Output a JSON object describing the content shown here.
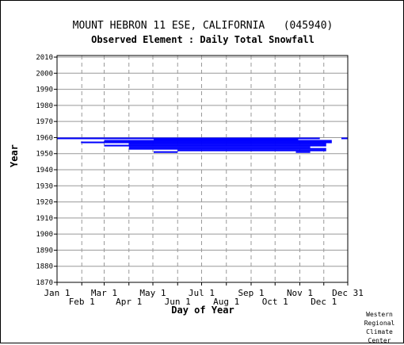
{
  "chart_data": {
    "type": "bar",
    "title": "MOUNT HEBRON 11 ESE, CALIFORNIA   (045940)",
    "subtitle": "Observed Element : Daily Total Snowfall",
    "xlabel": "Day of Year",
    "ylabel": "Year",
    "ylim": [
      1870,
      2011
    ],
    "y_ticks": [
      2010,
      2000,
      1990,
      1980,
      1970,
      1960,
      1950,
      1940,
      1930,
      1920,
      1910,
      1900,
      1890,
      1880,
      1870
    ],
    "x_ticks_top_row": [
      {
        "label": "Jan 1",
        "day": 1
      },
      {
        "label": "Mar 1",
        "day": 60
      },
      {
        "label": "May 1",
        "day": 121
      },
      {
        "label": "Jul 1",
        "day": 182
      },
      {
        "label": "Sep 1",
        "day": 244
      },
      {
        "label": "Nov 1",
        "day": 305
      },
      {
        "label": "Dec 31",
        "day": 365
      }
    ],
    "x_ticks_bottom_row": [
      {
        "label": "Feb 1",
        "day": 32
      },
      {
        "label": "Apr 1",
        "day": 91
      },
      {
        "label": "Jun 1",
        "day": 152
      },
      {
        "label": "Aug 1",
        "day": 213
      },
      {
        "label": "Oct 1",
        "day": 274
      },
      {
        "label": "Dec 1",
        "day": 335
      }
    ],
    "grid": true,
    "bar_color": "#0000ff",
    "periods_of_record": [
      {
        "year": 1959.5,
        "start_day": 1,
        "end_day": 330
      },
      {
        "year": 1959.5,
        "start_day": 357,
        "end_day": 365
      },
      {
        "year": 1959,
        "start_day": 122,
        "end_day": 303
      },
      {
        "year": 1958,
        "start_day": 60,
        "end_day": 345
      },
      {
        "year": 1957,
        "start_day": 31,
        "end_day": 345
      },
      {
        "year": 1956,
        "start_day": 91,
        "end_day": 338
      },
      {
        "year": 1955,
        "start_day": 60,
        "end_day": 338
      },
      {
        "year": 1954,
        "start_day": 91,
        "end_day": 318
      },
      {
        "year": 1953,
        "start_day": 91,
        "end_day": 338
      },
      {
        "year": 1952,
        "start_day": 152,
        "end_day": 338
      },
      {
        "year": 1951,
        "start_day": 122,
        "end_day": 152
      },
      {
        "year": 1951,
        "start_day": 300,
        "end_day": 318
      }
    ]
  },
  "credit": "Western Regional Climate Center"
}
